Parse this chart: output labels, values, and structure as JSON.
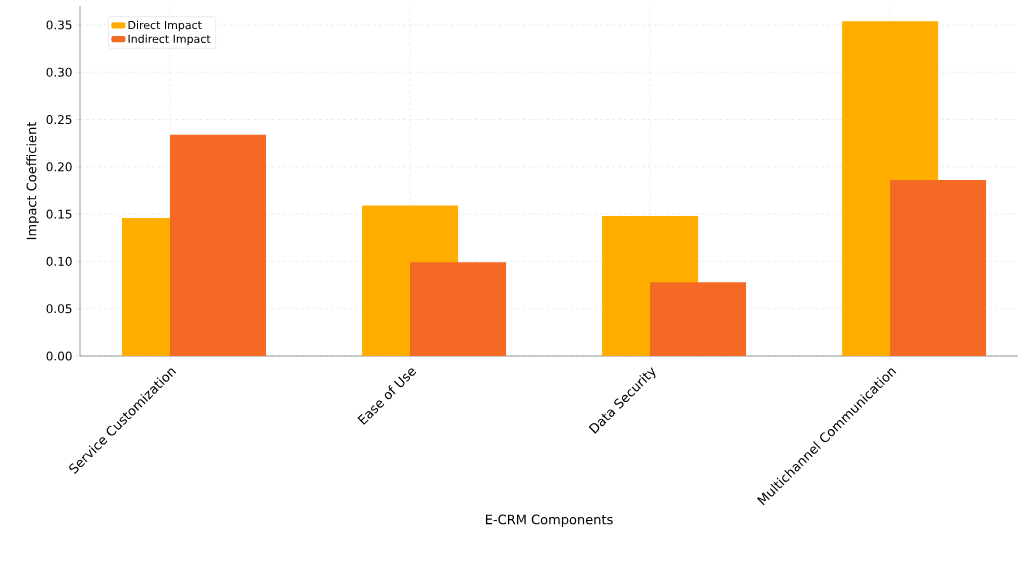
{
  "chart_data": {
    "type": "bar",
    "xlabel": "E-CRM Components",
    "ylabel": "Impact Coefficient",
    "categories": [
      "Service Customization",
      "Ease of Use",
      "Data Security",
      "Multichannel Communication"
    ],
    "series": [
      {
        "name": "Direct Impact",
        "color": "#ffae00",
        "values": [
          0.146,
          0.159,
          0.148,
          0.354
        ]
      },
      {
        "name": "Indirect Impact",
        "color": "#f46a25",
        "values": [
          0.234,
          0.099,
          0.078,
          0.186
        ]
      }
    ],
    "ylim": [
      0,
      0.37
    ],
    "yticks": [
      {
        "value": 0,
        "label": "0.00"
      },
      {
        "value": 0.05,
        "label": "0.05"
      },
      {
        "value": 0.1,
        "label": "0.10"
      },
      {
        "value": 0.15,
        "label": "0.15"
      },
      {
        "value": 0.2,
        "label": "0.20"
      },
      {
        "value": 0.25,
        "label": "0.25"
      },
      {
        "value": 0.3,
        "label": "0.30"
      },
      {
        "value": 0.35,
        "label": "0.35"
      }
    ],
    "grid": true,
    "legend": "top left"
  }
}
